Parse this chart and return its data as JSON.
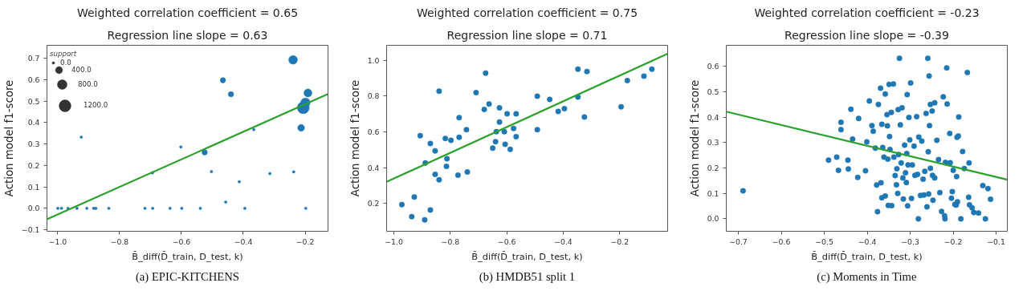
{
  "chart_data": [
    {
      "type": "bubble",
      "title": "Weighted correlation coefficient = 0.65",
      "subtitle": "Regression line slope = 0.63",
      "xlabel": "B̄_diff(D̄_train, D_test, k)",
      "ylabel": "Action model f1-score",
      "legend_title": "support",
      "size_legend": [
        {
          "value": 0,
          "label": "0.0"
        },
        {
          "value": 400,
          "label": "400.0"
        },
        {
          "value": 800,
          "label": "800.0"
        },
        {
          "value": 1200,
          "label": "1200.0"
        }
      ],
      "grid": false,
      "xlim": [
        -1.035,
        -0.126
      ],
      "ylim": [
        -0.107,
        0.76
      ],
      "xticks": [
        {
          "value": -1.0,
          "label": "−1.0"
        },
        {
          "value": -0.8,
          "label": "−0.8"
        },
        {
          "value": -0.6,
          "label": "−0.6"
        },
        {
          "value": -0.4,
          "label": "−0.4"
        },
        {
          "value": -0.2,
          "label": "−0.2"
        }
      ],
      "yticks": [
        {
          "value": -0.1,
          "label": "−0.1"
        },
        {
          "value": 0.0,
          "label": "0.0"
        },
        {
          "value": 0.1,
          "label": "0.1"
        },
        {
          "value": 0.2,
          "label": "0.2"
        },
        {
          "value": 0.3,
          "label": "0.3"
        },
        {
          "value": 0.4,
          "label": "0.4"
        },
        {
          "value": 0.5,
          "label": "0.5"
        },
        {
          "value": 0.6,
          "label": "0.6"
        },
        {
          "value": 0.7,
          "label": "0.7"
        }
      ],
      "annotations": [
        "(a) EPIC-KITCHENS"
      ],
      "series": [
        {
          "color": "#1f77b4",
          "x": [
            -1.0,
            -0.988,
            -0.967,
            -0.938,
            -0.906,
            -0.884,
            -0.877,
            -0.835,
            -0.718,
            -0.693,
            -0.637,
            -0.599,
            -0.539,
            -0.457,
            -0.395,
            -0.198,
            -0.924,
            -0.602,
            -0.525,
            -0.694,
            -0.503,
            -0.413,
            -0.314,
            -0.237,
            -0.366,
            -0.466,
            -0.44,
            -0.239,
            -0.191,
            -0.213,
            -0.206,
            -0.199
          ],
          "values": [
            0,
            0,
            0,
            0,
            0,
            0,
            0,
            0,
            0,
            0,
            0,
            0,
            0,
            0.029,
            0,
            0,
            0.332,
            0.286,
            0.261,
            0.165,
            0.171,
            0.124,
            0.162,
            0.17,
            0.367,
            0.597,
            0.532,
            0.692,
            0.538,
            0.375,
            0.469,
            0.493
          ],
          "sizes": [
            10,
            10,
            10,
            10,
            10,
            10,
            10,
            10,
            10,
            10,
            10,
            10,
            10,
            10,
            10,
            10,
            10,
            10,
            200,
            10,
            10,
            10,
            10,
            10,
            10,
            200,
            200,
            600,
            500,
            350,
            1200,
            700
          ]
        },
        {
          "type": "line",
          "color": "#2ca02c",
          "x": [
            -1.035,
            -0.126
          ],
          "values": [
            -0.051,
            0.533
          ]
        }
      ]
    },
    {
      "type": "scatter",
      "title": "Weighted correlation coefficient = 0.75",
      "subtitle": "Regression line slope = 0.71",
      "xlabel": "B̄_diff(D̄_train, D_test, k)",
      "ylabel": "Action model f1-score",
      "grid": false,
      "xlim": [
        -1.026,
        -0.03
      ],
      "ylim": [
        0.045,
        1.083
      ],
      "xticks": [
        {
          "value": -1.0,
          "label": "−1.0"
        },
        {
          "value": -0.8,
          "label": "−0.8"
        },
        {
          "value": -0.6,
          "label": "−0.6"
        },
        {
          "value": -0.4,
          "label": "−0.4"
        },
        {
          "value": -0.2,
          "label": "−0.2"
        }
      ],
      "yticks": [
        {
          "value": 0.2,
          "label": "0.2"
        },
        {
          "value": 0.4,
          "label": "0.4"
        },
        {
          "value": 0.6,
          "label": "0.6"
        },
        {
          "value": 0.8,
          "label": "0.8"
        },
        {
          "value": 1.0,
          "label": "1.0"
        }
      ],
      "annotations": [
        "(b) HMDB51 split 1"
      ],
      "series": [
        {
          "color": "#1f77b4",
          "x": [
            -0.972,
            -0.937,
            -0.928,
            -0.891,
            -0.871,
            -0.907,
            -0.871,
            -0.889,
            -0.854,
            -0.854,
            -0.84,
            -0.84,
            -0.818,
            -0.798,
            -0.812,
            -0.814,
            -0.773,
            -0.769,
            -0.769,
            -0.743,
            -0.74,
            -0.709,
            -0.68,
            -0.675,
            -0.663,
            -0.65,
            -0.64,
            -0.637,
            -0.626,
            -0.626,
            -0.609,
            -0.606,
            -0.599,
            -0.588,
            -0.576,
            -0.567,
            -0.567,
            -0.492,
            -0.492,
            -0.448,
            -0.418,
            -0.396,
            -0.348,
            -0.348,
            -0.316,
            -0.325,
            -0.195,
            -0.173,
            -0.114,
            -0.086
          ],
          "values": [
            0.194,
            0.127,
            0.236,
            0.109,
            0.164,
            0.578,
            0.535,
            0.426,
            0.494,
            0.363,
            0.332,
            0.827,
            0.563,
            0.553,
            0.45,
            0.407,
            0.358,
            0.57,
            0.679,
            0.612,
            0.376,
            0.819,
            0.725,
            0.928,
            0.755,
            0.509,
            0.545,
            0.601,
            0.655,
            0.734,
            0.601,
            0.531,
            0.701,
            0.502,
            0.619,
            0.573,
            0.701,
            0.799,
            0.612,
            0.781,
            0.714,
            0.729,
            0.95,
            0.794,
            0.937,
            0.683,
            0.74,
            0.886,
            0.911,
            0.95
          ]
        },
        {
          "type": "line",
          "color": "#2ca02c",
          "x": [
            -1.026,
            -0.03
          ],
          "values": [
            0.321,
            1.036
          ]
        }
      ]
    },
    {
      "type": "scatter",
      "title": "Weighted correlation coefficient = -0.23",
      "subtitle": "Regression line slope = -0.39",
      "xlabel": "B̄_diff(D̄_train, D_test, k)",
      "ylabel": "Action model f1-score",
      "grid": false,
      "xlim": [
        -0.728,
        -0.074
      ],
      "ylim": [
        -0.049,
        0.683
      ],
      "xticks": [
        {
          "value": -0.7,
          "label": "−0.7"
        },
        {
          "value": -0.6,
          "label": "−0.6"
        },
        {
          "value": -0.5,
          "label": "−0.5"
        },
        {
          "value": -0.4,
          "label": "−0.4"
        },
        {
          "value": -0.3,
          "label": "−0.3"
        },
        {
          "value": -0.2,
          "label": "−0.2"
        },
        {
          "value": -0.1,
          "label": "−0.1"
        }
      ],
      "yticks": [
        {
          "value": 0.0,
          "label": "0.0"
        },
        {
          "value": 0.1,
          "label": "0.1"
        },
        {
          "value": 0.2,
          "label": "0.2"
        },
        {
          "value": 0.3,
          "label": "0.3"
        },
        {
          "value": 0.4,
          "label": "0.4"
        },
        {
          "value": 0.5,
          "label": "0.5"
        },
        {
          "value": 0.6,
          "label": "0.6"
        }
      ],
      "annotations": [
        "(c) Moments in Time"
      ],
      "series": [
        {
          "color": "#1f77b4",
          "x": [
            -0.689,
            -0.49,
            -0.471,
            -0.461,
            -0.461,
            -0.467,
            -0.445,
            -0.444,
            -0.438,
            -0.434,
            -0.422,
            -0.42,
            -0.404,
            -0.401,
            -0.395,
            -0.389,
            -0.386,
            -0.381,
            -0.378,
            -0.376,
            -0.374,
            -0.369,
            -0.368,
            -0.366,
            -0.366,
            -0.364,
            -0.361,
            -0.358,
            -0.358,
            -0.354,
            -0.353,
            -0.352,
            -0.351,
            -0.349,
            -0.348,
            -0.347,
            -0.344,
            -0.343,
            -0.339,
            -0.338,
            -0.335,
            -0.332,
            -0.331,
            -0.329,
            -0.328,
            -0.327,
            -0.325,
            -0.323,
            -0.321,
            -0.319,
            -0.317,
            -0.316,
            -0.313,
            -0.311,
            -0.309,
            -0.308,
            -0.307,
            -0.306,
            -0.305,
            -0.303,
            -0.301,
            -0.299,
            -0.297,
            -0.295,
            -0.291,
            -0.289,
            -0.285,
            -0.283,
            -0.281,
            -0.28,
            -0.276,
            -0.273,
            -0.27,
            -0.268,
            -0.266,
            -0.263,
            -0.261,
            -0.259,
            -0.258,
            -0.257,
            -0.256,
            -0.255,
            -0.253,
            -0.253,
            -0.249,
            -0.248,
            -0.247,
            -0.243,
            -0.243,
            -0.238,
            -0.234,
            -0.231,
            -0.227,
            -0.223,
            -0.22,
            -0.219,
            -0.218,
            -0.215,
            -0.214,
            -0.208,
            -0.207,
            -0.204,
            -0.202,
            -0.2,
            -0.196,
            -0.193,
            -0.192,
            -0.191,
            -0.19,
            -0.188,
            -0.187,
            -0.182,
            -0.178,
            -0.174,
            -0.167,
            -0.164,
            -0.163,
            -0.162,
            -0.156,
            -0.152,
            -0.141,
            -0.131,
            -0.125,
            -0.119,
            -0.113
          ],
          "values": [
            0.11,
            0.231,
            0.243,
            0.38,
            0.351,
            0.191,
            0.231,
            0.196,
            0.431,
            0.314,
            0.163,
            0.395,
            0.189,
            0.303,
            0.464,
            0.367,
            0.345,
            0.278,
            0.133,
            0.028,
            0.45,
            0.514,
            0.142,
            0.372,
            0.083,
            0.281,
            0.243,
            0.491,
            0.09,
            0.41,
            0.366,
            0.235,
            0.053,
            0.529,
            0.324,
            0.273,
            0.419,
            0.052,
            0.531,
            0.243,
            0.17,
            0.134,
            0.197,
            0.1,
            0.43,
            0.253,
            0.632,
            0.37,
            0.22,
            0.437,
            0.161,
            0.078,
            0.29,
            0.181,
            0.143,
            0.257,
            0.489,
            0.051,
            0.212,
            0.399,
            0.311,
            0.535,
            0.08,
            0.212,
            0.286,
            0.171,
            0.402,
            0.175,
            0.0,
            0.322,
            0.092,
            0.306,
            0.156,
            0.094,
            0.187,
            0.415,
            0.047,
            0.632,
            0.264,
            0.098,
            0.562,
            0.367,
            0.45,
            0.199,
            0.424,
            0.171,
            0.073,
            0.457,
            0.161,
            0.309,
            0.233,
            0.103,
            0.029,
            0.48,
            0.012,
            0.0,
            0.222,
            0.594,
            0.452,
            0.336,
            0.221,
            0.081,
            0.107,
            0.191,
            0.057,
            0.054,
            0.166,
            0.321,
            0.067,
            0.326,
            0.401,
            0.0,
            0.265,
            0.198,
            0.576,
            0.085,
            0.22,
            0.055,
            0.043,
            0.025,
            0.023,
            0.131,
            0.0,
            0.119,
            0.077
          ]
        },
        {
          "type": "line",
          "color": "#2ca02c",
          "x": [
            -0.728,
            -0.074
          ],
          "values": [
            0.422,
            0.154
          ]
        }
      ]
    }
  ]
}
